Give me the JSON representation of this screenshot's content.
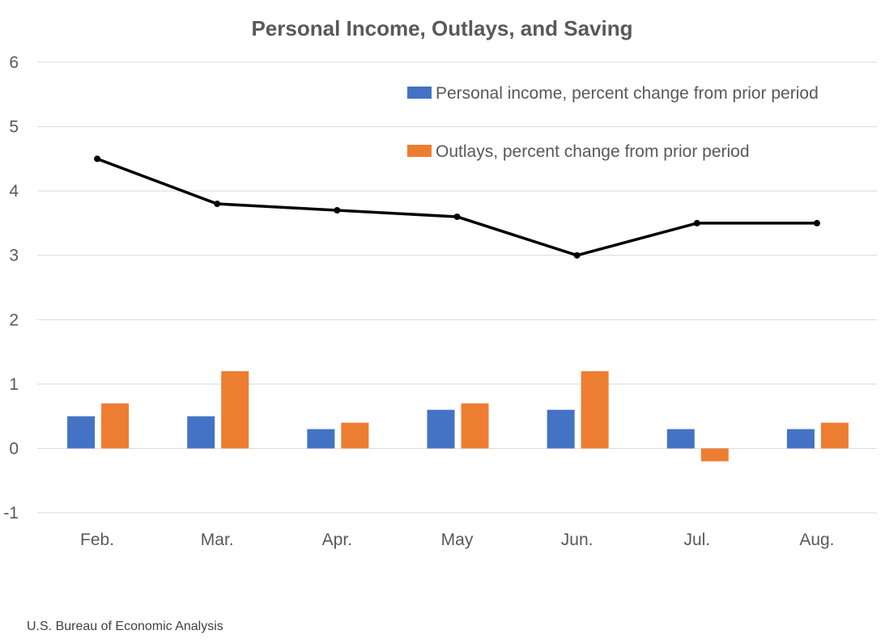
{
  "chart_data": {
    "type": "bar",
    "title": "Personal Income, Outlays, and Saving",
    "categories": [
      "Feb.",
      "Mar.",
      "Apr.",
      "May",
      "Jun.",
      "Jul.",
      "Aug."
    ],
    "series": [
      {
        "name": "Personal income, percent change from prior period",
        "type": "bar",
        "color": "#4472C4",
        "values": [
          0.5,
          0.5,
          0.3,
          0.6,
          0.6,
          0.3,
          0.3
        ]
      },
      {
        "name": "Outlays, percent change from prior period",
        "type": "bar",
        "color": "#ED7D31",
        "values": [
          0.7,
          1.2,
          0.4,
          0.7,
          1.2,
          -0.2,
          0.4
        ]
      },
      {
        "name": "",
        "type": "line",
        "color": "#000000",
        "values": [
          4.5,
          3.8,
          3.7,
          3.6,
          3.0,
          3.5,
          3.5
        ]
      }
    ],
    "ylim": [
      -1,
      6
    ],
    "yticks": [
      "-1",
      "0",
      "1",
      "2",
      "3",
      "4",
      "5",
      "6"
    ],
    "xlabel": "",
    "ylabel": "",
    "grid": true,
    "legend_position": "top-right"
  },
  "source": "U.S. Bureau of Economic Analysis"
}
